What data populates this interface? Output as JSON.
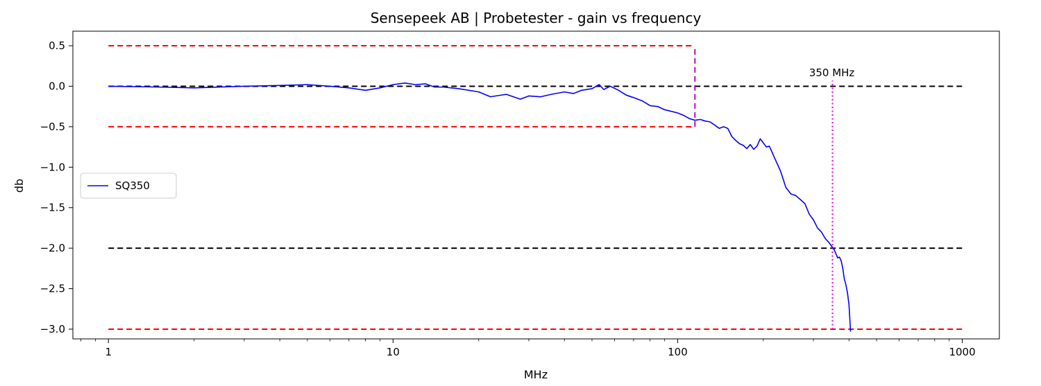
{
  "chart_data": {
    "type": "line",
    "title": "Sensepeek AB | Probetester - gain vs frequency",
    "xlabel": "MHz",
    "ylabel": "db",
    "xscale": "log",
    "xlim": [
      0.75,
      1350
    ],
    "ylim": [
      -3.12,
      0.68
    ],
    "xticks": [
      {
        "value": 1,
        "label": "1"
      },
      {
        "value": 10,
        "label": "10"
      },
      {
        "value": 100,
        "label": "100"
      },
      {
        "value": 1000,
        "label": "1000"
      }
    ],
    "yticks": [
      {
        "value": 0.5,
        "label": "0.5"
      },
      {
        "value": 0.0,
        "label": "0.0"
      },
      {
        "value": -0.5,
        "label": "−0.5"
      },
      {
        "value": -1.0,
        "label": "−1.0"
      },
      {
        "value": -1.5,
        "label": "−1.5"
      },
      {
        "value": -2.0,
        "label": "−2.0"
      },
      {
        "value": -2.5,
        "label": "−2.5"
      },
      {
        "value": -3.0,
        "label": "−3.0"
      }
    ],
    "grid": false,
    "legend": {
      "placement": "center-left",
      "entries": [
        "SQ350"
      ]
    },
    "series": [
      {
        "name": "SQ350",
        "color": "#0000ff",
        "x": [
          1,
          1.5,
          2,
          3,
          4,
          5,
          6,
          7,
          8,
          9,
          10,
          11,
          12,
          13,
          14,
          15,
          17,
          20,
          22,
          25,
          28,
          30,
          33,
          36,
          40,
          43,
          46,
          50,
          53,
          55,
          58,
          62,
          66,
          70,
          75,
          80,
          85,
          90,
          95,
          100,
          105,
          110,
          115,
          120,
          125,
          130,
          135,
          140,
          145,
          150,
          155,
          160,
          165,
          170,
          175,
          180,
          185,
          190,
          195,
          200,
          205,
          210,
          215,
          220,
          230,
          240,
          250,
          260,
          270,
          280,
          290,
          300,
          310,
          320,
          330,
          340,
          350,
          355,
          360,
          365,
          370,
          375,
          380,
          385,
          390,
          395,
          400,
          405
        ],
        "y": [
          0.0,
          -0.01,
          -0.02,
          0.0,
          0.01,
          0.02,
          0.0,
          -0.02,
          -0.05,
          -0.02,
          0.02,
          0.04,
          0.02,
          0.03,
          -0.01,
          -0.01,
          -0.03,
          -0.07,
          -0.13,
          -0.1,
          -0.16,
          -0.12,
          -0.13,
          -0.1,
          -0.07,
          -0.09,
          -0.05,
          -0.03,
          0.02,
          -0.04,
          0.0,
          -0.05,
          -0.11,
          -0.14,
          -0.18,
          -0.24,
          -0.25,
          -0.29,
          -0.31,
          -0.33,
          -0.36,
          -0.4,
          -0.42,
          -0.41,
          -0.43,
          -0.44,
          -0.48,
          -0.52,
          -0.5,
          -0.52,
          -0.62,
          -0.67,
          -0.71,
          -0.73,
          -0.77,
          -0.72,
          -0.78,
          -0.74,
          -0.65,
          -0.7,
          -0.75,
          -0.74,
          -0.82,
          -0.9,
          -1.05,
          -1.25,
          -1.33,
          -1.35,
          -1.4,
          -1.45,
          -1.58,
          -1.65,
          -1.75,
          -1.8,
          -1.88,
          -1.93,
          -1.99,
          -2.02,
          -2.07,
          -2.12,
          -2.11,
          -2.15,
          -2.24,
          -2.38,
          -2.45,
          -2.55,
          -2.7,
          -3.03
        ]
      }
    ],
    "reference_lines": [
      {
        "type": "horizontal",
        "y": 0.0,
        "x_range": [
          1,
          1000
        ],
        "color": "#000000",
        "style": "dashed"
      },
      {
        "type": "horizontal",
        "y": -2.0,
        "x_range": [
          1,
          1000
        ],
        "color": "#000000",
        "style": "dashed"
      },
      {
        "type": "horizontal",
        "y": 0.5,
        "x_range": [
          1,
          115
        ],
        "color": "#ff0000",
        "style": "dashed"
      },
      {
        "type": "horizontal",
        "y": -0.5,
        "x_range": [
          1,
          115
        ],
        "color": "#ff0000",
        "style": "dashed"
      },
      {
        "type": "horizontal",
        "y": -3.0,
        "x_range": [
          1,
          1000
        ],
        "color": "#ff0000",
        "style": "dashed"
      },
      {
        "type": "vertical",
        "x": 115,
        "y_range": [
          -0.5,
          0.5
        ],
        "color": "#c000c0",
        "style": "dashed"
      },
      {
        "type": "vertical",
        "x": 350,
        "y_range": [
          -3.0,
          0.07
        ],
        "color": "#e000e0",
        "style": "dotted"
      }
    ],
    "annotations": [
      {
        "text": "350 MHz",
        "x": 350,
        "y": 0.08
      }
    ]
  }
}
